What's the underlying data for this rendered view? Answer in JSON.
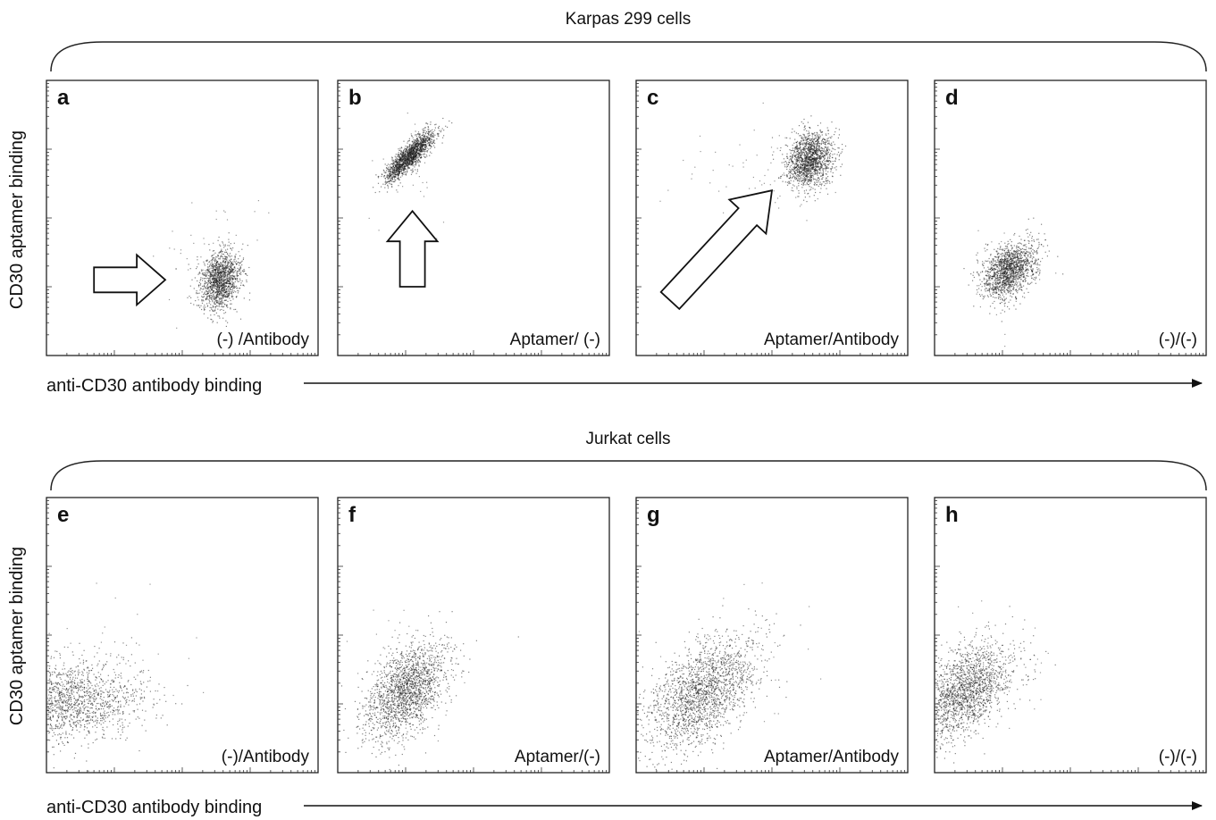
{
  "axes": {
    "xlabel": "anti-CD30 antibody binding",
    "ylabel": "CD30 aptamer binding",
    "scale": "log",
    "decades": 4,
    "xlim": [
      0,
      4
    ],
    "ylim": [
      0,
      4
    ]
  },
  "groups": [
    {
      "title": "Karpas 299 cells",
      "panels": [
        "a",
        "b",
        "c",
        "d"
      ]
    },
    {
      "title": "Jurkat cells",
      "panels": [
        "e",
        "f",
        "g",
        "h"
      ]
    }
  ],
  "chart_data": [
    {
      "type": "scatter",
      "panel": "a",
      "label": "(-) /Antibody",
      "group": "Karpas 299 cells",
      "cluster": {
        "x": 2.55,
        "y": 1.1,
        "sx": 0.15,
        "sy": 0.22,
        "rho": 0.2,
        "n": 1400
      },
      "sparse": {
        "x": 2.4,
        "y": 1.4,
        "sx": 0.45,
        "sy": 0.5,
        "n": 40
      },
      "arrow": {
        "from": [
          0.7,
          1.1
        ],
        "to": [
          1.75,
          1.1
        ]
      }
    },
    {
      "type": "scatter",
      "panel": "b",
      "label": "Aptamer/ (-)",
      "group": "Karpas 299 cells",
      "cluster": {
        "x": 1.05,
        "y": 2.9,
        "sx": 0.18,
        "sy": 0.18,
        "rho": 0.85,
        "n": 1600
      },
      "sparse": {
        "x": 0.9,
        "y": 2.7,
        "sx": 0.35,
        "sy": 0.35,
        "n": 30
      },
      "arrow": {
        "from": [
          1.1,
          1.0
        ],
        "to": [
          1.1,
          2.1
        ]
      }
    },
    {
      "type": "scatter",
      "panel": "c",
      "label": "Aptamer/Antibody",
      "group": "Karpas 299 cells",
      "cluster": {
        "x": 2.55,
        "y": 2.85,
        "sx": 0.17,
        "sy": 0.2,
        "rho": 0.2,
        "n": 1500
      },
      "sparse": {
        "x": 1.9,
        "y": 2.6,
        "sx": 0.55,
        "sy": 0.4,
        "n": 70
      },
      "arrow": {
        "from": [
          0.5,
          0.8
        ],
        "to": [
          2.0,
          2.4
        ]
      }
    },
    {
      "type": "scatter",
      "panel": "d",
      "label": "(-)/(-)",
      "group": "Karpas 299 cells",
      "cluster": {
        "x": 1.1,
        "y": 1.25,
        "sx": 0.2,
        "sy": 0.2,
        "rho": 0.35,
        "n": 1500
      },
      "sparse": {
        "x": 1.1,
        "y": 1.2,
        "sx": 0.35,
        "sy": 0.45,
        "n": 30
      }
    },
    {
      "type": "scatter",
      "panel": "e",
      "label": "(-)/Antibody",
      "group": "Jurkat cells",
      "cluster": {
        "x": 0.3,
        "y": 1.05,
        "sx": 0.55,
        "sy": 0.3,
        "rho": 0.1,
        "n": 1700
      },
      "sparse": {
        "x": 1.0,
        "y": 1.5,
        "sx": 0.6,
        "sy": 0.5,
        "n": 30
      }
    },
    {
      "type": "scatter",
      "panel": "f",
      "label": "Aptamer/(-)",
      "group": "Jurkat cells",
      "cluster": {
        "x": 1.0,
        "y": 1.2,
        "sx": 0.3,
        "sy": 0.35,
        "rho": 0.45,
        "n": 1800
      },
      "sparse": {
        "x": 1.0,
        "y": 1.3,
        "sx": 0.55,
        "sy": 0.6,
        "n": 40
      }
    },
    {
      "type": "scatter",
      "panel": "g",
      "label": "Aptamer/Antibody",
      "group": "Jurkat cells",
      "cluster": {
        "x": 0.95,
        "y": 1.15,
        "sx": 0.42,
        "sy": 0.42,
        "rho": 0.5,
        "n": 1900
      },
      "sparse": {
        "x": 1.3,
        "y": 1.5,
        "sx": 0.7,
        "sy": 0.6,
        "n": 40
      }
    },
    {
      "type": "scatter",
      "panel": "h",
      "label": "(-)/(-)",
      "group": "Jurkat cells",
      "cluster": {
        "x": 0.45,
        "y": 1.2,
        "sx": 0.35,
        "sy": 0.35,
        "rho": 0.5,
        "n": 1800
      },
      "sparse": {
        "x": 0.8,
        "y": 1.4,
        "sx": 0.55,
        "sy": 0.55,
        "n": 40
      }
    }
  ]
}
